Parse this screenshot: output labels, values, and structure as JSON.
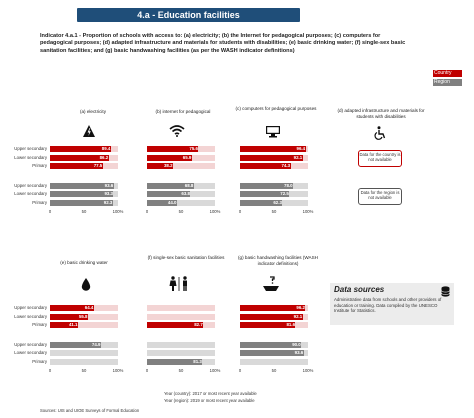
{
  "header": {
    "title": "4.a - Education facilities",
    "intro": "Indicator 4.a.1 - Proportion of schools with access to: (a) electricity; (b) the Internet for pedagogical purposes; (c) computers for pedagogical purposes; (d) adapted infrastructure and materials for students with disabilities; (e) basic drinking water; (f) single-sex basic sanitation facilities; and (g) basic handwashing facilities (as per the WASH indicator definitions)"
  },
  "legend": {
    "country": "Country",
    "region": "Region"
  },
  "colors": {
    "country": "#c00000",
    "region": "#808080",
    "banner": "#1f4e79"
  },
  "levels": [
    "Upper secondary",
    "Lower secondary",
    "Primary"
  ],
  "ticks": [
    "0",
    "50",
    "100%"
  ],
  "chart_data": [
    {
      "type": "bar",
      "title": "(a) electricity",
      "icon": "lightning-icon",
      "categories": [
        "Upper secondary",
        "Lower secondary",
        "Primary"
      ],
      "series": [
        {
          "name": "Country",
          "values": [
            89.4,
            86.2,
            77.5
          ]
        },
        {
          "name": "Region",
          "values": [
            93.6,
            93.3,
            92.3
          ]
        }
      ],
      "xlim": [
        0,
        100
      ]
    },
    {
      "type": "bar",
      "title": "(b) internet for pedagogical",
      "icon": "wifi-icon",
      "categories": [
        "Upper secondary",
        "Lower secondary",
        "Primary"
      ],
      "series": [
        {
          "name": "Country",
          "values": [
            75.6,
            65.9,
            38.2
          ]
        },
        {
          "name": "Region",
          "values": [
            68.8,
            63.8,
            44.0
          ]
        }
      ],
      "xlim": [
        0,
        100
      ]
    },
    {
      "type": "bar",
      "title": "(c) computers for pedagogical purposes",
      "icon": "computer-icon",
      "categories": [
        "Upper secondary",
        "Lower secondary",
        "Primary"
      ],
      "series": [
        {
          "name": "Country",
          "values": [
            96.4,
            92.1,
            74.3
          ]
        },
        {
          "name": "Region",
          "values": [
            78.0,
            72.5,
            62.3
          ]
        }
      ],
      "xlim": [
        0,
        100
      ]
    },
    {
      "type": "table",
      "title": "(d) adapted infrastructure and materials for students with disabilities",
      "icon": "wheelchair-icon",
      "country_note": "Data for the country is not available",
      "region_note": "Data for the region is not available"
    },
    {
      "type": "bar",
      "title": "(e) basic drinking water",
      "icon": "water-drop-icon",
      "categories": [
        "Upper secondary",
        "Lower secondary",
        "Primary"
      ],
      "series": [
        {
          "name": "Country",
          "values": [
            64.4,
            55.8,
            41.1
          ]
        },
        {
          "name": "Region",
          "values": [
            74.9,
            null,
            null
          ]
        }
      ],
      "xlim": [
        0,
        100
      ]
    },
    {
      "type": "bar",
      "title": "(f) single-sex basic sanitation facilities",
      "icon": "restroom-icon",
      "categories": [
        "Upper secondary",
        "Lower secondary",
        "Primary"
      ],
      "series": [
        {
          "name": "Country",
          "values": [
            null,
            null,
            82.7
          ]
        },
        {
          "name": "Region",
          "values": [
            null,
            null,
            81.3
          ]
        }
      ],
      "xlim": [
        0,
        100
      ]
    },
    {
      "type": "bar",
      "title": "(g) basic handwashing facilities (WASH indicator definitions)",
      "icon": "handwashing-icon",
      "categories": [
        "Upper secondary",
        "Lower secondary",
        "Primary"
      ],
      "series": [
        {
          "name": "Country",
          "values": [
            96.2,
            92.1,
            81.6
          ]
        },
        {
          "name": "Region",
          "values": [
            90.0,
            93.6,
            null
          ]
        }
      ],
      "xlim": [
        0,
        100
      ]
    }
  ],
  "data_sources": {
    "title": "Data sources",
    "text": "Administrative data from schools and other providers of education or training. Data compiled by the UNESCO Institute for Statistics."
  },
  "footnotes": {
    "country_year": "Year (country): 2017 or most recent year available",
    "region_year": "Year (region): 2019 or most recent year available",
    "source": "Sources: UIS and UIOE Surveys of Formal Education"
  }
}
